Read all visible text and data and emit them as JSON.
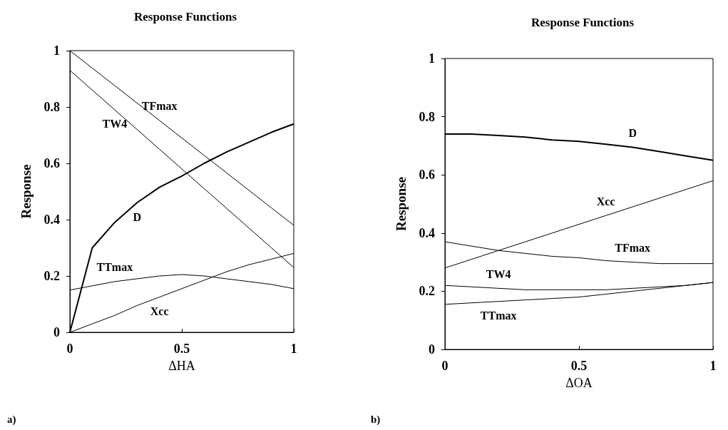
{
  "chart_data": [
    {
      "type": "line",
      "title": "Response Functions",
      "xlabel": "ΔHA",
      "ylabel": "Response",
      "annotations": [
        "a)"
      ],
      "xlim": [
        0,
        1
      ],
      "xticks": [
        0,
        0.5,
        1
      ],
      "ylim": [
        0,
        1
      ],
      "yticks": [
        0,
        0.2,
        0.4,
        0.6,
        0.8,
        1
      ],
      "grid": false,
      "legend": false,
      "marker": "none",
      "line_style": "solid",
      "x": [
        0,
        0.1,
        0.2,
        0.3,
        0.4,
        0.5,
        0.6,
        0.7,
        0.8,
        0.9,
        1
      ],
      "series": [
        {
          "name": "TFmax",
          "color": "#000000",
          "values": [
            1.0,
            0.938,
            0.876,
            0.814,
            0.752,
            0.69,
            0.628,
            0.566,
            0.504,
            0.442,
            0.38
          ]
        },
        {
          "name": "TW4",
          "color": "#000000",
          "values": [
            0.93,
            0.86,
            0.79,
            0.72,
            0.65,
            0.58,
            0.51,
            0.44,
            0.37,
            0.3,
            0.23
          ]
        },
        {
          "name": "D",
          "color": "#000000",
          "values": [
            0,
            0.3,
            0.39,
            0.46,
            0.515,
            0.555,
            0.6,
            0.64,
            0.675,
            0.71,
            0.74
          ]
        },
        {
          "name": "TTmax",
          "color": "#000000",
          "values": [
            0.15,
            0.165,
            0.18,
            0.19,
            0.2,
            0.205,
            0.2,
            0.19,
            0.18,
            0.17,
            0.155
          ]
        },
        {
          "name": "Xcc",
          "color": "#000000",
          "values": [
            0,
            0.03,
            0.06,
            0.095,
            0.125,
            0.155,
            0.185,
            0.215,
            0.24,
            0.26,
            0.28
          ]
        }
      ]
    },
    {
      "type": "line",
      "title": "Response Functions",
      "xlabel": "ΔOA",
      "ylabel": "Response",
      "annotations": [
        "b)"
      ],
      "xlim": [
        0,
        1
      ],
      "xticks": [
        0,
        0.5,
        1
      ],
      "ylim": [
        0,
        1
      ],
      "yticks": [
        0,
        0.2,
        0.4,
        0.6,
        0.8,
        1
      ],
      "grid": false,
      "legend": false,
      "marker": "none",
      "line_style": "solid",
      "x": [
        0,
        0.1,
        0.2,
        0.3,
        0.4,
        0.5,
        0.6,
        0.7,
        0.8,
        0.9,
        1
      ],
      "series": [
        {
          "name": "D",
          "color": "#000000",
          "values": [
            0.74,
            0.74,
            0.735,
            0.73,
            0.72,
            0.715,
            0.705,
            0.695,
            0.68,
            0.665,
            0.65
          ]
        },
        {
          "name": "Xcc",
          "color": "#000000",
          "values": [
            0.28,
            0.31,
            0.34,
            0.37,
            0.4,
            0.43,
            0.46,
            0.49,
            0.52,
            0.55,
            0.58
          ]
        },
        {
          "name": "TFmax",
          "color": "#000000",
          "values": [
            0.37,
            0.355,
            0.34,
            0.33,
            0.32,
            0.315,
            0.305,
            0.3,
            0.295,
            0.295,
            0.295
          ]
        },
        {
          "name": "TW4",
          "color": "#000000",
          "values": [
            0.22,
            0.215,
            0.21,
            0.205,
            0.205,
            0.205,
            0.205,
            0.21,
            0.215,
            0.22,
            0.23
          ]
        },
        {
          "name": "TTmax",
          "color": "#000000",
          "values": [
            0.155,
            0.16,
            0.165,
            0.17,
            0.175,
            0.18,
            0.19,
            0.2,
            0.21,
            0.22,
            0.23
          ]
        }
      ]
    }
  ]
}
